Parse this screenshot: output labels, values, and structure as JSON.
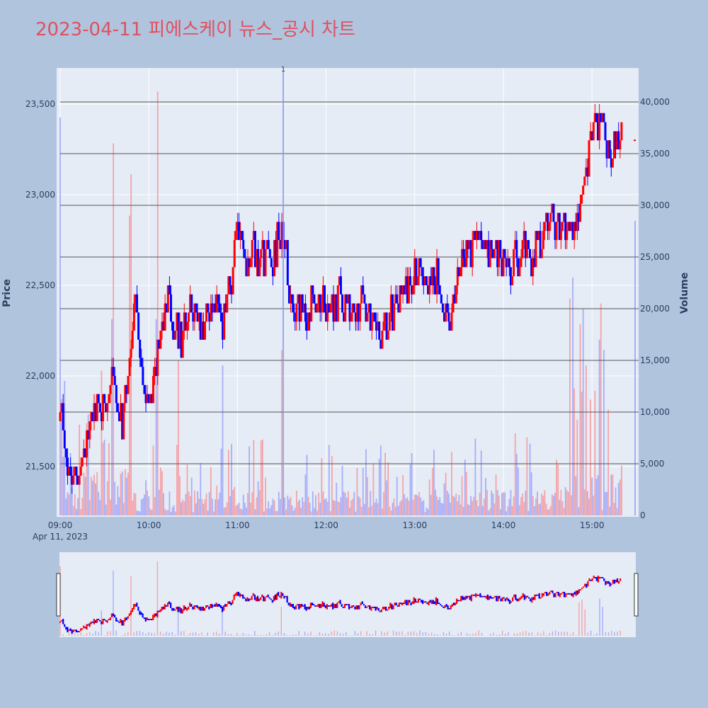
{
  "title": "2023-04-11 피에스케이 뉴스_공시 차트",
  "colors": {
    "background": "#b0c4de",
    "plot_bg": "#e5ecf6",
    "title": "#e05060",
    "up": "#ff0000",
    "down": "#0000ff",
    "up_volume": "#f4a3a8",
    "down_volume": "#a7aef8",
    "hline": "#555555"
  },
  "chart_data": {
    "type": "candlestick",
    "x_date_label": "Apr 11, 2023",
    "x_ticks": [
      "09:00",
      "10:00",
      "11:00",
      "12:00",
      "13:00",
      "14:00",
      "15:00"
    ],
    "x_range": [
      "09:00",
      "15:30"
    ],
    "price_axis": {
      "title": "Price",
      "range": [
        21200,
        23700
      ],
      "ticks": [
        21500,
        22000,
        22500,
        23000,
        23500
      ],
      "tick_labels": [
        "21,500",
        "22,000",
        "22,500",
        "23,000",
        "23,500"
      ]
    },
    "volume_axis": {
      "title": "Volume",
      "range": [
        0,
        43500
      ],
      "ticks": [
        0,
        5000,
        10000,
        15000,
        20000,
        25000,
        30000,
        35000,
        40000
      ],
      "tick_labels": [
        "0",
        "5,000",
        "10,000",
        "15,000",
        "20,000",
        "25,000",
        "30,000",
        "35,000",
        "40,000"
      ]
    },
    "horizontal_lines_volume": [
      5000,
      10000,
      15000,
      20000,
      25000,
      30000,
      35000,
      40000
    ],
    "news_marker": {
      "time": "11:31",
      "label": "1"
    },
    "price_path": [
      [
        "09:00",
        21750
      ],
      [
        "09:05",
        21500
      ],
      [
        "09:08",
        21400
      ],
      [
        "09:12",
        21450
      ],
      [
        "09:18",
        21650
      ],
      [
        "09:25",
        21850
      ],
      [
        "09:30",
        21850
      ],
      [
        "09:35",
        22050
      ],
      [
        "09:42",
        21700
      ],
      [
        "09:47",
        22050
      ],
      [
        "09:51",
        22400
      ],
      [
        "09:54",
        22150
      ],
      [
        "09:58",
        21900
      ],
      [
        "10:02",
        21800
      ],
      [
        "10:06",
        22150
      ],
      [
        "10:10",
        22300
      ],
      [
        "10:13",
        22550
      ],
      [
        "10:17",
        22250
      ],
      [
        "10:22",
        22200
      ],
      [
        "10:26",
        22300
      ],
      [
        "10:30",
        22400
      ],
      [
        "10:35",
        22250
      ],
      [
        "10:40",
        22350
      ],
      [
        "10:45",
        22450
      ],
      [
        "10:50",
        22300
      ],
      [
        "10:55",
        22600
      ],
      [
        "11:00",
        22700
      ],
      [
        "11:05",
        22650
      ],
      [
        "11:10",
        22700
      ],
      [
        "11:15",
        22600
      ],
      [
        "11:20",
        22700
      ],
      [
        "11:25",
        22650
      ],
      [
        "11:30",
        22850
      ],
      [
        "11:33",
        22650
      ],
      [
        "11:36",
        22450
      ],
      [
        "11:40",
        22400
      ],
      [
        "11:45",
        22350
      ],
      [
        "11:50",
        22400
      ],
      [
        "11:55",
        22450
      ],
      [
        "12:00",
        22350
      ],
      [
        "12:05",
        22400
      ],
      [
        "12:10",
        22450
      ],
      [
        "12:15",
        22350
      ],
      [
        "12:20",
        22350
      ],
      [
        "12:25",
        22450
      ],
      [
        "12:30",
        22300
      ],
      [
        "12:35",
        22250
      ],
      [
        "12:40",
        22250
      ],
      [
        "12:45",
        22350
      ],
      [
        "12:50",
        22400
      ],
      [
        "12:55",
        22500
      ],
      [
        "13:00",
        22550
      ],
      [
        "13:05",
        22600
      ],
      [
        "13:10",
        22500
      ],
      [
        "13:15",
        22550
      ],
      [
        "13:20",
        22450
      ],
      [
        "13:25",
        22400
      ],
      [
        "13:30",
        22500
      ],
      [
        "13:35",
        22700
      ],
      [
        "13:40",
        22700
      ],
      [
        "13:45",
        22750
      ],
      [
        "13:50",
        22700
      ],
      [
        "13:55",
        22700
      ],
      [
        "14:00",
        22650
      ],
      [
        "14:05",
        22600
      ],
      [
        "14:10",
        22650
      ],
      [
        "14:15",
        22700
      ],
      [
        "14:20",
        22650
      ],
      [
        "14:25",
        22750
      ],
      [
        "14:30",
        22800
      ],
      [
        "14:35",
        22850
      ],
      [
        "14:40",
        22800
      ],
      [
        "14:45",
        22850
      ],
      [
        "14:50",
        22900
      ],
      [
        "14:55",
        23000
      ],
      [
        "14:58",
        23300
      ],
      [
        "15:02",
        23350
      ],
      [
        "15:06",
        23400
      ],
      [
        "15:10",
        23300
      ],
      [
        "15:14",
        23250
      ],
      [
        "15:18",
        23250
      ],
      [
        "15:20",
        23300
      ]
    ],
    "volume_spikes": [
      [
        "09:00",
        38500,
        "down"
      ],
      [
        "09:28",
        14000,
        "up"
      ],
      [
        "09:35",
        19000,
        "down"
      ],
      [
        "09:36",
        36000,
        "up"
      ],
      [
        "09:47",
        29000,
        "up"
      ],
      [
        "09:48",
        33000,
        "up"
      ],
      [
        "10:06",
        41000,
        "up"
      ],
      [
        "10:05",
        19000,
        "down"
      ],
      [
        "10:20",
        15000,
        "up"
      ],
      [
        "10:50",
        14500,
        "down"
      ],
      [
        "11:31",
        43000,
        "down"
      ],
      [
        "11:30",
        16000,
        "up"
      ],
      [
        "14:45",
        21000,
        "up"
      ],
      [
        "14:47",
        23000,
        "down"
      ],
      [
        "14:52",
        18500,
        "up"
      ],
      [
        "14:54",
        20000,
        "down"
      ],
      [
        "14:56",
        14500,
        "up"
      ],
      [
        "15:06",
        20500,
        "up"
      ],
      [
        "15:05",
        17000,
        "down"
      ],
      [
        "15:08",
        16000,
        "down"
      ],
      [
        "15:30",
        28500,
        "down"
      ]
    ],
    "last_price_marker": 23300,
    "legend": "none",
    "grid": true
  }
}
